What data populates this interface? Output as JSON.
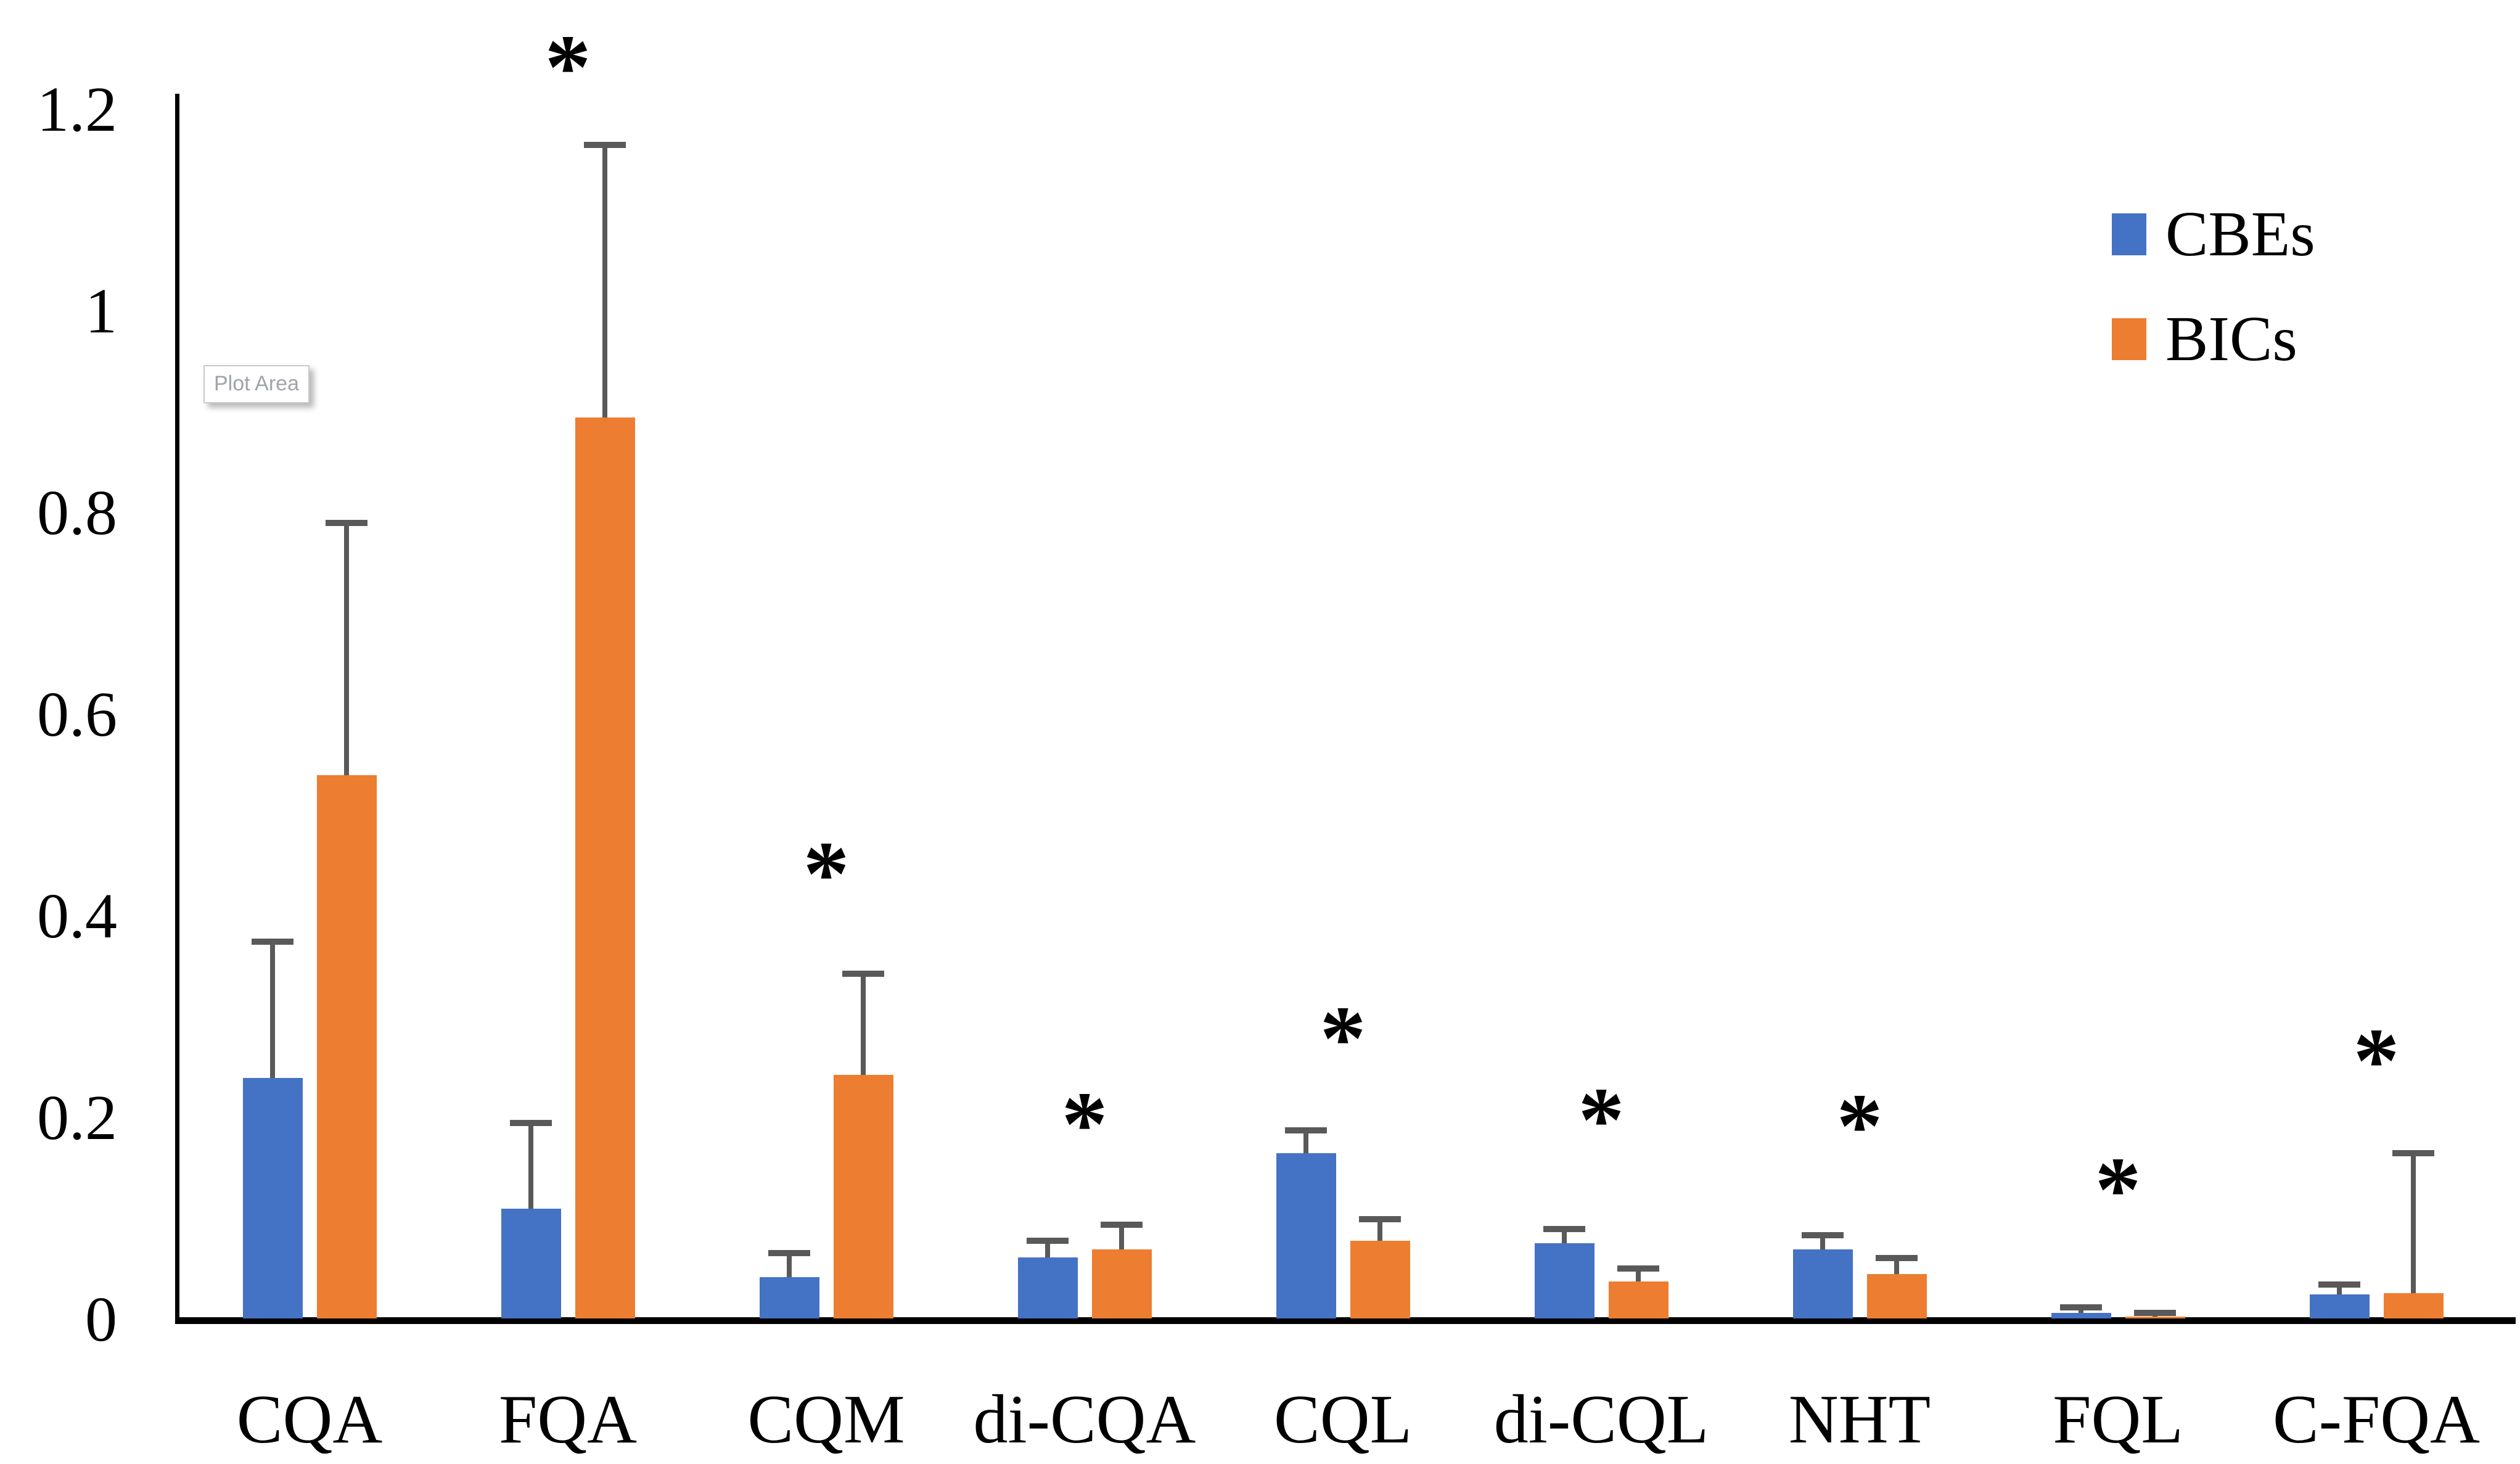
{
  "chart_data": {
    "type": "bar",
    "title": "",
    "xlabel": "",
    "ylabel": "",
    "categories": [
      "CQA",
      "FQA",
      "CQM",
      "di-CQA",
      "CQL",
      "di-CQL",
      "NHT",
      "FQL",
      "C-FQA"
    ],
    "series": [
      {
        "name": "CBEs",
        "color": "#4472C4",
        "values": [
          0.24,
          0.11,
          0.042,
          0.062,
          0.165,
          0.076,
          0.07,
          0.007,
          0.025
        ],
        "errors_up": [
          0.135,
          0.085,
          0.024,
          0.016,
          0.023,
          0.014,
          0.014,
          0.005,
          0.01
        ]
      },
      {
        "name": "BICs",
        "color": "#ED7D31",
        "values": [
          0.54,
          0.895,
          0.243,
          0.07,
          0.078,
          0.038,
          0.045,
          0.003,
          0.026
        ],
        "errors_up": [
          0.25,
          0.27,
          0.1,
          0.024,
          0.022,
          0.013,
          0.016,
          0.004,
          0.139
        ]
      }
    ],
    "significance_symbol": "*",
    "significance_y": [
      null,
      1.263,
      0.463,
      0.215,
      0.3,
      0.219,
      0.213,
      0.15,
      0.278
    ],
    "yticks": [
      "0",
      "0.2",
      "0.4",
      "0.6",
      "0.8",
      "1",
      "1.2"
    ],
    "ylim": [
      0,
      1.2
    ],
    "grid": false,
    "legend_position": "top-right",
    "error_bar_color": "#595959",
    "axis_color": "#000000"
  },
  "legend": {
    "items": [
      {
        "label": "CBEs",
        "color": "#4472C4"
      },
      {
        "label": "BICs",
        "color": "#ED7D31"
      }
    ]
  },
  "tooltip": {
    "label": "Plot Area"
  }
}
